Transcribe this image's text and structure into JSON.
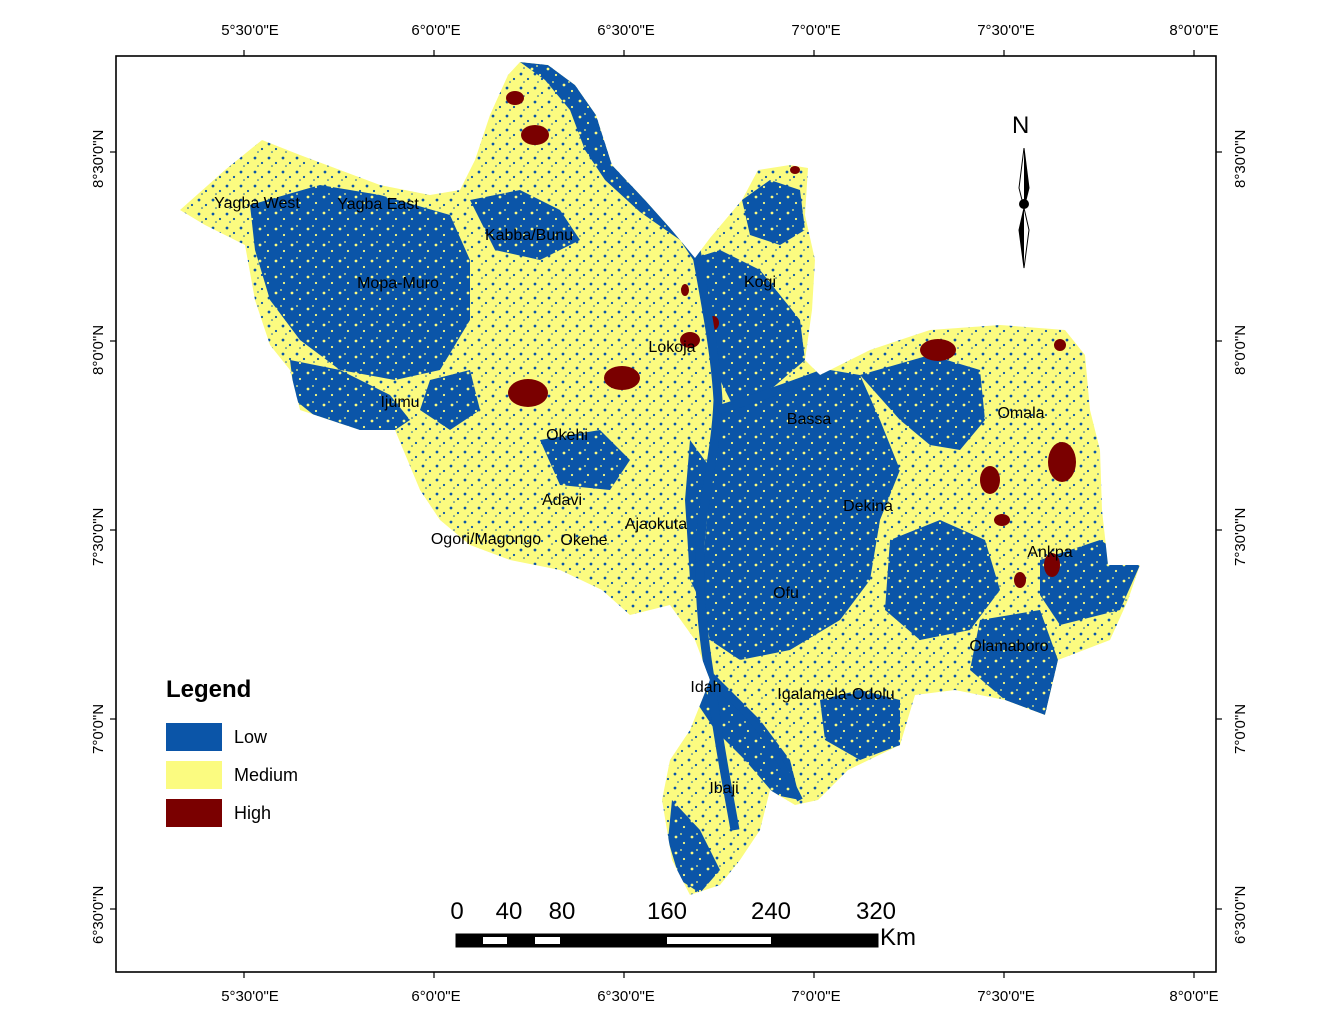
{
  "colors": {
    "low": "#0b55a8",
    "medium": "#fbfb80",
    "high": "#7a0000",
    "frame": "#000000"
  },
  "graticule": {
    "top_lon": [
      "5°30'0\"E",
      "6°0'0\"E",
      "6°30'0\"E",
      "7°0'0\"E",
      "7°30'0\"E",
      "8°0'0\"E"
    ],
    "bottom_lon": [
      "5°30'0\"E",
      "6°0'0\"E",
      "6°30'0\"E",
      "7°0'0\"E",
      "7°30'0\"E",
      "8°0'0\"E"
    ],
    "left_lat": [
      "8°30'0\"N",
      "8°0'0\"N",
      "7°30'0\"N",
      "7°0'0\"N",
      "6°30'0\"N"
    ],
    "right_lat": [
      "8°30'0\"N",
      "8°0'0\"N",
      "7°30'0\"N",
      "7°0'0\"N",
      "6°30'0\"N"
    ]
  },
  "lgas": [
    "Yagba West",
    "Yagba East",
    "Kabba/Bunu",
    "Kogi",
    "Mopa-Muro",
    "Lokoja",
    "Ijumu",
    "Bassa",
    "Omala",
    "Okehi",
    "Adavi",
    "Dekina",
    "Ajaokuta",
    "Ogori/Magongo",
    "Okene",
    "Ankpa",
    "Ofu",
    "Olamaboro",
    "Idah",
    "Igalamela-Odolu",
    "Ibaji"
  ],
  "legend": {
    "title": "Legend",
    "items": [
      {
        "label": "Low",
        "color": "#0b55a8"
      },
      {
        "label": "Medium",
        "color": "#fbfb80"
      },
      {
        "label": "High",
        "color": "#7a0000"
      }
    ]
  },
  "north_arrow": {
    "label": "N",
    "icon": "north-arrow-icon"
  },
  "scale_bar": {
    "ticks": [
      "0",
      "40",
      "80",
      "160",
      "240",
      "320"
    ],
    "unit": "Km"
  }
}
